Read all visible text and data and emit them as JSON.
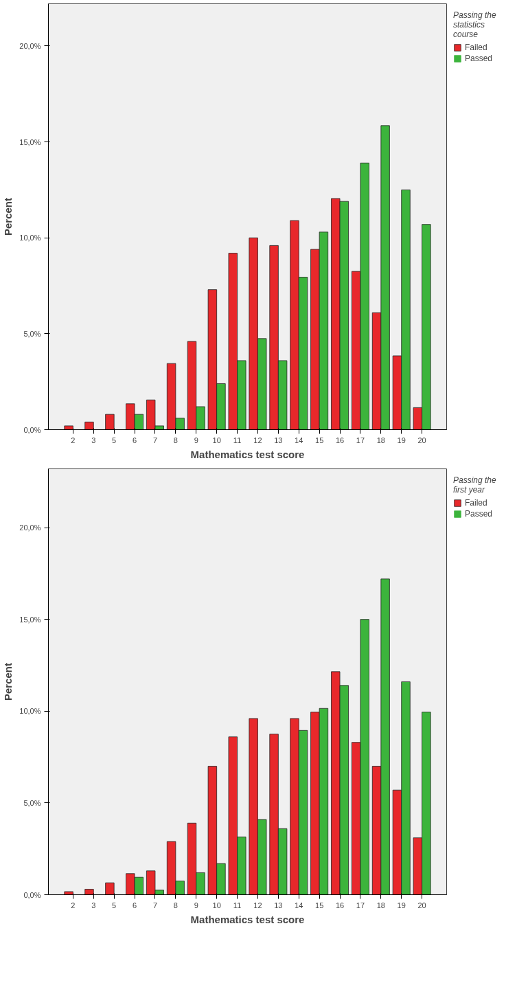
{
  "chart_data": [
    {
      "type": "bar",
      "xlabel": "Mathematics test score",
      "ylabel": "Percent",
      "legend_title": "Passing the statistics course",
      "legend": "top right",
      "grid": false,
      "categories": [
        "2",
        "3",
        "5",
        "6",
        "7",
        "8",
        "9",
        "10",
        "11",
        "12",
        "13",
        "14",
        "15",
        "16",
        "17",
        "18",
        "19",
        "20"
      ],
      "ylim": [
        0,
        22.2
      ],
      "yticks": [
        {
          "value": 0,
          "label": "0,0%"
        },
        {
          "value": 5,
          "label": "5,0%"
        },
        {
          "value": 10,
          "label": "10,0%"
        },
        {
          "value": 15,
          "label": "15,0%"
        },
        {
          "value": 20,
          "label": "20,0%"
        }
      ],
      "series": [
        {
          "name": "Failed",
          "color": "#e8282b",
          "values": [
            0.2,
            0.4,
            0.8,
            1.35,
            1.55,
            3.45,
            4.6,
            7.3,
            9.2,
            10.0,
            9.6,
            10.9,
            9.4,
            12.05,
            8.25,
            6.1,
            3.85,
            1.15
          ]
        },
        {
          "name": "Passed",
          "color": "#3cb43c",
          "values": [
            0,
            0,
            0,
            0.8,
            0.2,
            0.6,
            1.2,
            2.4,
            3.6,
            4.75,
            3.6,
            7.95,
            10.3,
            11.9,
            13.9,
            15.85,
            12.5,
            10.7
          ]
        }
      ]
    },
    {
      "type": "bar",
      "xlabel": "Mathematics test score",
      "ylabel": "Percent",
      "legend_title": "Passing the first year",
      "legend": "top right",
      "grid": false,
      "categories": [
        "2",
        "3",
        "5",
        "6",
        "7",
        "8",
        "9",
        "10",
        "11",
        "12",
        "13",
        "14",
        "15",
        "16",
        "17",
        "18",
        "19",
        "20"
      ],
      "ylim": [
        0,
        23.2
      ],
      "yticks": [
        {
          "value": 0,
          "label": "0,0%"
        },
        {
          "value": 5,
          "label": "5,0%"
        },
        {
          "value": 10,
          "label": "10,0%"
        },
        {
          "value": 15,
          "label": "15,0%"
        },
        {
          "value": 20,
          "label": "20,0%"
        }
      ],
      "series": [
        {
          "name": "Failed",
          "color": "#e8282b",
          "values": [
            0.17,
            0.3,
            0.65,
            1.15,
            1.3,
            2.9,
            3.9,
            7.0,
            8.6,
            9.6,
            8.75,
            9.6,
            9.95,
            12.15,
            8.3,
            7.0,
            5.7,
            3.1
          ]
        },
        {
          "name": "Passed",
          "color": "#3cb43c",
          "values": [
            0,
            0,
            0,
            0.95,
            0.25,
            0.75,
            1.2,
            1.7,
            3.15,
            4.1,
            3.6,
            8.95,
            10.15,
            11.4,
            15.0,
            17.2,
            11.6,
            9.95
          ]
        }
      ]
    }
  ]
}
